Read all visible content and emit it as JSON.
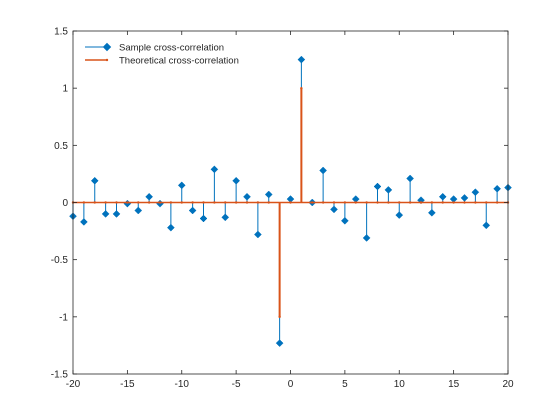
{
  "chart_data": {
    "type": "stem",
    "title": "",
    "xlabel": "",
    "ylabel": "",
    "xlim": [
      -20,
      20
    ],
    "ylim": [
      -1.5,
      1.5
    ],
    "x_ticks": [
      -20,
      -15,
      -10,
      -5,
      0,
      5,
      10,
      15,
      20
    ],
    "x_tick_labels": [
      "-20",
      "-15",
      "-10",
      "-5",
      "0",
      "5",
      "10",
      "15",
      "20"
    ],
    "y_ticks": [
      1.5,
      1,
      0.5,
      0,
      -0.5,
      -1,
      -1.5
    ],
    "y_tick_labels": [
      "1.5",
      "1",
      "0.5",
      "0",
      "-0.5",
      "-1",
      "-1.5"
    ],
    "grid": false,
    "legend_position": "top-left",
    "series": [
      {
        "name": "Sample cross-correlation",
        "color": "#0072BD",
        "marker": "diamond",
        "x": [
          -20,
          -19,
          -18,
          -17,
          -16,
          -15,
          -14,
          -13,
          -12,
          -11,
          -10,
          -9,
          -8,
          -7,
          -6,
          -5,
          -4,
          -3,
          -2,
          -1,
          0,
          1,
          2,
          3,
          4,
          5,
          6,
          7,
          8,
          9,
          10,
          11,
          12,
          13,
          14,
          15,
          16,
          17,
          18,
          19,
          20
        ],
        "values": [
          -0.12,
          -0.17,
          0.19,
          -0.1,
          -0.1,
          -0.01,
          -0.07,
          0.05,
          -0.01,
          -0.22,
          0.15,
          -0.07,
          -0.14,
          0.29,
          -0.13,
          0.19,
          0.05,
          -0.28,
          0.07,
          -1.23,
          0.03,
          1.25,
          0.0,
          0.28,
          -0.06,
          -0.16,
          0.03,
          -0.31,
          0.14,
          0.11,
          -0.11,
          0.21,
          0.02,
          -0.09,
          0.05,
          0.03,
          0.04,
          0.09,
          -0.2,
          0.12,
          0.13
        ]
      },
      {
        "name": "Theoretical cross-correlation",
        "color": "#D95319",
        "marker": "dot",
        "x": [
          -20,
          -19,
          -18,
          -17,
          -16,
          -15,
          -14,
          -13,
          -12,
          -11,
          -10,
          -9,
          -8,
          -7,
          -6,
          -5,
          -4,
          -3,
          -2,
          -1,
          0,
          1,
          2,
          3,
          4,
          5,
          6,
          7,
          8,
          9,
          10,
          11,
          12,
          13,
          14,
          15,
          16,
          17,
          18,
          19,
          20
        ],
        "values": [
          0,
          0,
          0,
          0,
          0,
          0,
          0,
          0,
          0,
          0,
          0,
          0,
          0,
          0,
          0,
          0,
          0,
          0,
          0,
          -1,
          0,
          1,
          0,
          0,
          0,
          0,
          0,
          0,
          0,
          0,
          0,
          0,
          0,
          0,
          0,
          0,
          0,
          0,
          0,
          0,
          0
        ]
      }
    ]
  }
}
